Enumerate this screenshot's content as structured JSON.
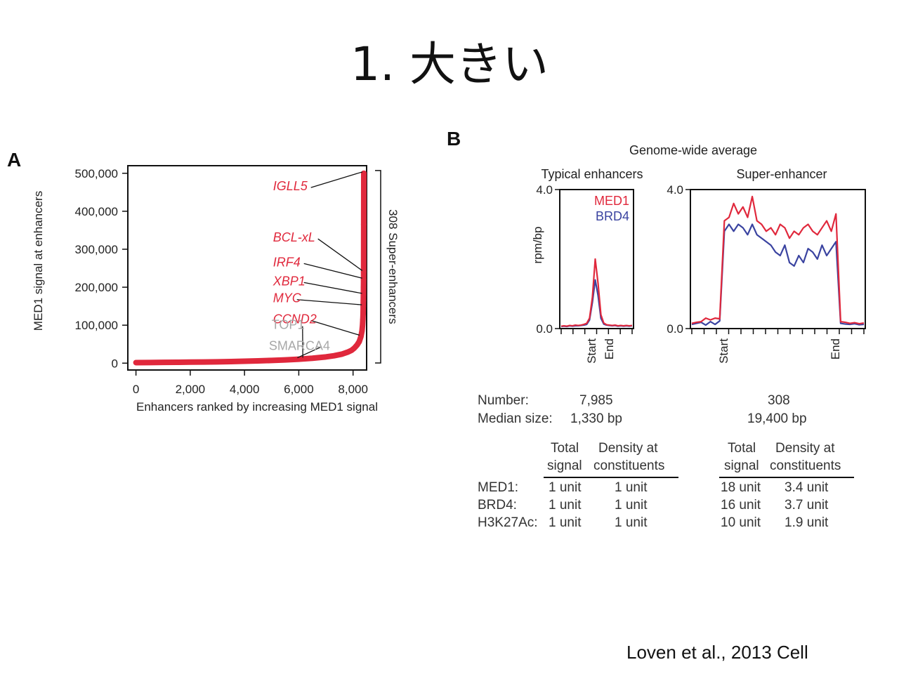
{
  "slide": {
    "title": "1. 大きい",
    "citation": "Loven et al., 2013 Cell"
  },
  "panel_a": {
    "letter": "A",
    "chart_data": {
      "type": "scatter",
      "xlabel": "Enhancers ranked by increasing MED1 signal",
      "ylabel": "MED1 signal at enhancers",
      "xlim": [
        -300,
        8500
      ],
      "ylim": [
        -18000,
        520000
      ],
      "x_ticks": [
        0,
        2000,
        4000,
        6000,
        8000
      ],
      "x_tick_labels": [
        "0",
        "2,000",
        "4,000",
        "6,000",
        "8,000"
      ],
      "y_ticks": [
        0,
        100000,
        200000,
        300000,
        400000,
        500000
      ],
      "y_tick_labels": [
        "0",
        "100,000",
        "200,000",
        "300,000",
        "400,000",
        "500,000"
      ],
      "series_color": "#e0283c",
      "points": [
        [
          0,
          1500
        ],
        [
          500,
          1700
        ],
        [
          1000,
          2000
        ],
        [
          1500,
          2300
        ],
        [
          2000,
          2700
        ],
        [
          2500,
          3100
        ],
        [
          3000,
          3600
        ],
        [
          3500,
          4200
        ],
        [
          4000,
          5000
        ],
        [
          4500,
          6000
        ],
        [
          5000,
          7200
        ],
        [
          5500,
          8600
        ],
        [
          6000,
          10500
        ],
        [
          6500,
          13000
        ],
        [
          7000,
          16500
        ],
        [
          7300,
          19500
        ],
        [
          7600,
          24000
        ],
        [
          7800,
          29000
        ],
        [
          7950,
          34000
        ],
        [
          8050,
          40000
        ],
        [
          8150,
          48000
        ],
        [
          8230,
          57000
        ],
        [
          8290,
          70000
        ],
        [
          8330,
          85000
        ],
        [
          8350,
          100000
        ],
        [
          8362,
          115000
        ],
        [
          8370,
          130000
        ],
        [
          8375,
          150000
        ],
        [
          8379,
          165000
        ],
        [
          8382,
          180000
        ],
        [
          8385,
          200000
        ],
        [
          8388,
          220000
        ],
        [
          8390,
          240000
        ],
        [
          8393,
          365000
        ],
        [
          8396,
          500000
        ]
      ],
      "labels": [
        {
          "text": "IGLL5",
          "color": "#e0283c",
          "italic": true,
          "point": [
            8396,
            500000
          ],
          "at": [
            5050,
            455000
          ]
        },
        {
          "text": "BCL-xL",
          "color": "#e0283c",
          "italic": true,
          "point": [
            8390,
            240000
          ],
          "at": [
            5050,
            320000
          ]
        },
        {
          "text": "IRF4",
          "color": "#e0283c",
          "italic": true,
          "point": [
            8388,
            220000
          ],
          "at": [
            5050,
            255000
          ]
        },
        {
          "text": "XBP1",
          "color": "#e0283c",
          "italic": true,
          "point": [
            8382,
            180000
          ],
          "at": [
            5050,
            205000
          ]
        },
        {
          "text": "MYC",
          "color": "#e0283c",
          "italic": true,
          "point": [
            8375,
            150000
          ],
          "at": [
            5050,
            160000
          ]
        },
        {
          "text": "CCND2",
          "color": "#e0283c",
          "italic": true,
          "point": [
            8290,
            70000
          ],
          "at": [
            5050,
            105000
          ]
        },
        {
          "text": "TOP1",
          "color": "#a8a8a8",
          "italic": false,
          "point": [
            6200,
            11000
          ],
          "at": [
            5000,
            90000
          ]
        },
        {
          "text": "SMARCA4",
          "color": "#a8a8a8",
          "italic": false,
          "point": [
            6000,
            10500
          ],
          "at": [
            4900,
            35000
          ]
        }
      ],
      "bracket_label": "308 Super-enhancers"
    }
  },
  "panel_b": {
    "letter": "B",
    "chart_data": [
      {
        "type": "line",
        "title": "Typical enhancers",
        "super_title": "Genome-wide average",
        "ylabel": "rpm/bp",
        "ylim": [
          0,
          4.0
        ],
        "y_tick_labels": [
          "0.0",
          "4.0"
        ],
        "x_tick_labels": [
          "Start",
          "End"
        ],
        "series": [
          {
            "name": "MED1",
            "color": "#e0283c",
            "values": [
              0.07,
              0.08,
              0.07,
              0.09,
              0.08,
              0.1,
              0.09,
              0.1,
              0.12,
              0.15,
              0.3,
              0.9,
              2.0,
              1.3,
              0.4,
              0.16,
              0.11,
              0.1,
              0.09,
              0.1,
              0.08,
              0.09,
              0.08,
              0.09,
              0.08,
              0.09
            ]
          },
          {
            "name": "BRD4",
            "color": "#3a43a0",
            "values": [
              0.06,
              0.07,
              0.06,
              0.08,
              0.07,
              0.08,
              0.08,
              0.09,
              0.1,
              0.12,
              0.25,
              0.75,
              1.4,
              0.95,
              0.3,
              0.13,
              0.1,
              0.09,
              0.08,
              0.09,
              0.07,
              0.08,
              0.07,
              0.08,
              0.07,
              0.08
            ]
          }
        ]
      },
      {
        "type": "line",
        "title": "Super-enhancer",
        "ylim": [
          0,
          4.0
        ],
        "y_tick_labels": [
          "0.0",
          "4.0"
        ],
        "x_tick_labels": [
          "Start",
          "End"
        ],
        "series": [
          {
            "name": "MED1",
            "color": "#e0283c",
            "values": [
              0.15,
              0.18,
              0.2,
              0.3,
              0.25,
              0.3,
              0.28,
              3.1,
              3.2,
              3.6,
              3.3,
              3.5,
              3.2,
              3.8,
              3.1,
              3.0,
              2.8,
              2.9,
              2.7,
              3.0,
              2.9,
              2.6,
              2.8,
              2.7,
              2.9,
              3.0,
              2.8,
              2.7,
              2.9,
              3.1,
              2.8,
              3.3,
              0.2,
              0.18,
              0.15,
              0.17,
              0.14,
              0.16
            ]
          },
          {
            "name": "BRD4",
            "color": "#3a43a0",
            "values": [
              0.12,
              0.15,
              0.18,
              0.1,
              0.2,
              0.12,
              0.22,
              2.8,
              3.0,
              2.8,
              3.0,
              2.9,
              2.7,
              3.0,
              2.7,
              2.6,
              2.5,
              2.4,
              2.2,
              2.1,
              2.4,
              1.9,
              1.8,
              2.1,
              1.9,
              2.3,
              2.2,
              2.0,
              2.4,
              2.1,
              2.3,
              2.5,
              0.15,
              0.13,
              0.12,
              0.14,
              0.11,
              0.12
            ]
          }
        ]
      }
    ],
    "summary": {
      "number_label": "Number:",
      "median_label": "Median size:",
      "typical_number": "7,985",
      "typical_median": "1,330 bp",
      "super_number": "308",
      "super_median": "19,400 bp"
    },
    "table": {
      "col_total_1": "Total",
      "col_total_2": "signal",
      "col_density_1": "Density at",
      "col_density_2": "constituents",
      "rows": [
        {
          "label": "MED1:",
          "typical_total": "1 unit",
          "typical_density": "1 unit",
          "super_total": "18 unit",
          "super_density": "3.4 unit"
        },
        {
          "label": "BRD4:",
          "typical_total": "1 unit",
          "typical_density": "1 unit",
          "super_total": "16 unit",
          "super_density": "3.7 unit"
        },
        {
          "label": "H3K27Ac:",
          "typical_total": "1 unit",
          "typical_density": "1 unit",
          "super_total": "10 unit",
          "super_density": "1.9 unit"
        }
      ]
    }
  }
}
